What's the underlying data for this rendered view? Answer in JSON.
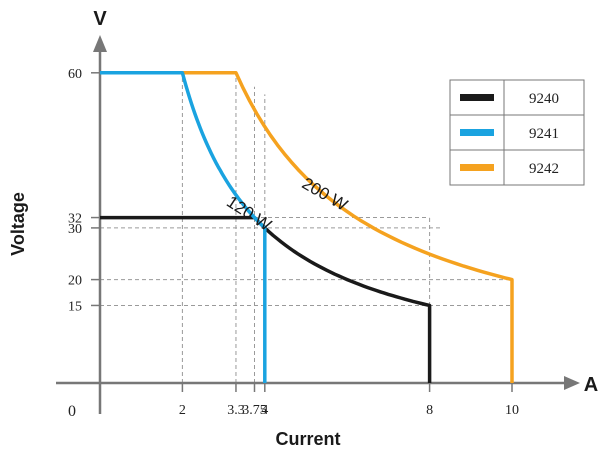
{
  "chart_data": {
    "type": "line",
    "x_unit": "A",
    "y_unit": "V",
    "xlabel": "Current",
    "ylabel": "Voltage",
    "origin_label": "0",
    "x_ticks": [
      {
        "value": 2,
        "label": "2"
      },
      {
        "value": 3.3,
        "label": "3.3"
      },
      {
        "value": 3.75,
        "label": "3.75"
      },
      {
        "value": 4,
        "label": "4"
      },
      {
        "value": 8,
        "label": "8"
      },
      {
        "value": 10,
        "label": "10"
      }
    ],
    "y_ticks": [
      {
        "value": 15,
        "label": "15"
      },
      {
        "value": 20,
        "label": "20"
      },
      {
        "value": 30,
        "label": "30"
      },
      {
        "value": 32,
        "label": "32"
      },
      {
        "value": 60,
        "label": "60"
      }
    ],
    "xlim": [
      0,
      11.4
    ],
    "ylim": [
      0,
      67
    ],
    "power_curves": [
      {
        "label": "120 W",
        "power": 120
      },
      {
        "label": "200 W",
        "power": 200
      }
    ],
    "legend_position": "top-right",
    "series": [
      {
        "name": "9240",
        "color": "#1a1a1a",
        "points": [
          [
            0,
            32
          ],
          [
            3.75,
            32
          ],
          [
            4,
            30
          ],
          [
            8,
            15
          ],
          [
            8,
            0
          ]
        ]
      },
      {
        "name": "9241",
        "color": "#1aa3e0",
        "points": [
          [
            0,
            60
          ],
          [
            2,
            60
          ],
          [
            3.75,
            32
          ],
          [
            4,
            30
          ],
          [
            4,
            0
          ]
        ]
      },
      {
        "name": "9242",
        "color": "#f5a21f",
        "points": [
          [
            0,
            60
          ],
          [
            3.3,
            60
          ],
          [
            10,
            20
          ],
          [
            10,
            0
          ]
        ]
      }
    ]
  }
}
